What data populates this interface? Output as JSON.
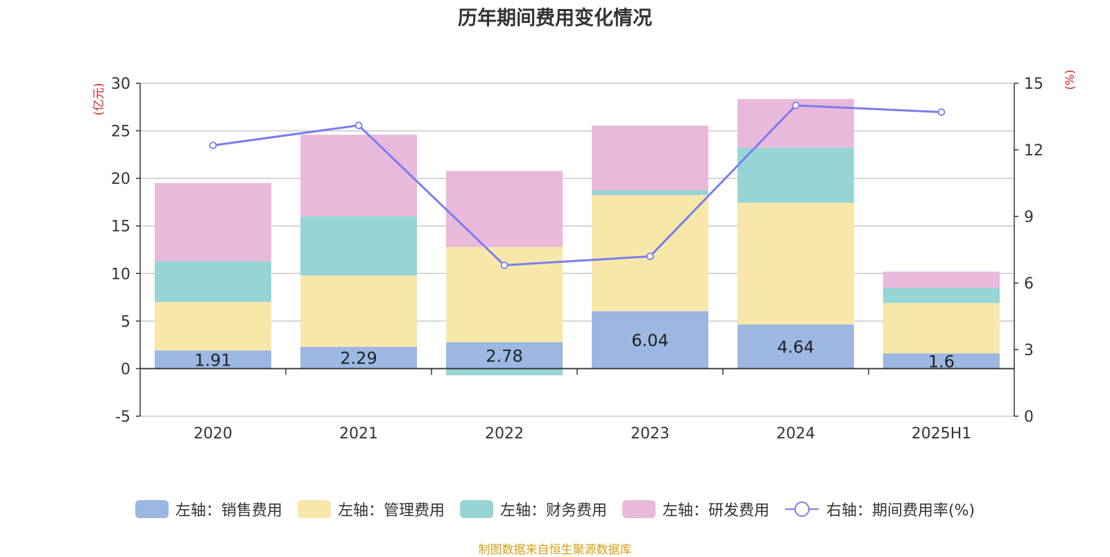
{
  "chart_data": {
    "type": "bar",
    "title": "历年期间费用变化情况",
    "categories": [
      "2020",
      "2021",
      "2022",
      "2023",
      "2024",
      "2025H1"
    ],
    "series": [
      {
        "name": "左轴：销售费用",
        "axis": "left",
        "color": "#9bb7e2",
        "values": [
          1.91,
          2.29,
          2.78,
          6.04,
          4.64,
          1.6
        ],
        "show_labels": true
      },
      {
        "name": "左轴：管理费用",
        "axis": "left",
        "color": "#f7e7a9",
        "values": [
          5.1,
          7.5,
          10.0,
          12.2,
          12.8,
          5.3
        ]
      },
      {
        "name": "左轴：财务费用",
        "axis": "left",
        "color": "#97d5d5",
        "values": [
          4.3,
          6.2,
          -0.7,
          0.5,
          5.8,
          1.6
        ]
      },
      {
        "name": "左轴：研发费用",
        "axis": "left",
        "color": "#e8b9da",
        "values": [
          8.2,
          8.6,
          8.0,
          6.8,
          5.1,
          1.7
        ]
      },
      {
        "name": "右轴：期间费用率(%)",
        "axis": "right",
        "type": "line",
        "color": "#7a7cf0",
        "values": [
          12.2,
          13.1,
          6.8,
          7.2,
          14.0,
          13.7
        ]
      }
    ],
    "ylabel_left": "(亿元)",
    "ylabel_right": "(%)",
    "ylim_left": [
      -5,
      30
    ],
    "yticks_left": [
      -5,
      0,
      5,
      10,
      15,
      20,
      25,
      30
    ],
    "ylim_right": [
      0,
      15
    ],
    "yticks_right": [
      0,
      3,
      6,
      9,
      12,
      15
    ],
    "stacked": true,
    "grid": true,
    "legend_position": "bottom"
  },
  "footer": "制图数据来自恒生聚源数据库"
}
